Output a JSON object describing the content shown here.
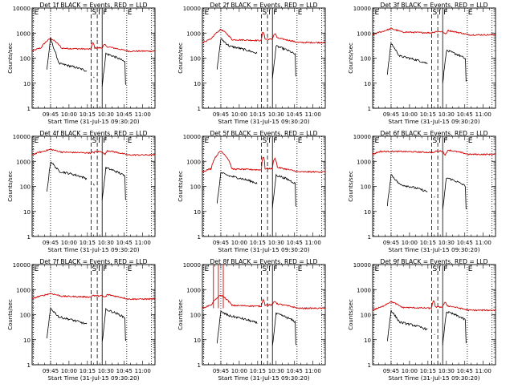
{
  "chart_data": {
    "type": "line",
    "layout": "3x3 grid",
    "xlabel": "Start Time (31-Jul-15 09:30:20)",
    "ylabel": "Counts/sec",
    "yscale": "log",
    "ylim": [
      1,
      10000
    ],
    "ytick_labels": [
      "1",
      "10",
      "100",
      "1000",
      "10000"
    ],
    "xlim_min": [
      0,
      100
    ],
    "xtick_labels": [
      "09:45",
      "10:00",
      "10:15",
      "10:30",
      "10:45",
      "11:00"
    ],
    "xticks_min": [
      15,
      30,
      45,
      60,
      75,
      90
    ],
    "series_colors": {
      "events": "#000000",
      "lld": "#d40000"
    },
    "markers": [
      {
        "label": "E",
        "t": 1,
        "style": "dotted"
      },
      {
        "label": "",
        "t": 15,
        "style": "dotted"
      },
      {
        "label": "S",
        "t": 48,
        "style": "dashed"
      },
      {
        "label": "I",
        "t": 53,
        "style": "dashed"
      },
      {
        "label": "F",
        "t": 57,
        "style": "solid"
      },
      {
        "label": "E",
        "t": 77,
        "style": "dotted"
      },
      {
        "label": "",
        "t": 97,
        "style": "dotted"
      }
    ],
    "panels": [
      {
        "title": "Det 1f BLACK = Events, RED = LLD",
        "lld_base": 190,
        "lld_peak": 620,
        "lld_bump": 400,
        "ev_peak": 600,
        "ev_mid": 30,
        "ev_after": 150,
        "spikes": []
      },
      {
        "title": "Det 2f BLACK = Events, RED = LLD",
        "lld_base": 420,
        "lld_peak": 1400,
        "lld_bump": 1100,
        "ev_peak": 600,
        "ev_mid": 150,
        "ev_after": 300,
        "spikes": []
      },
      {
        "title": "Det 3f BLACK = Events, RED = LLD",
        "lld_base": 850,
        "lld_peak": 1500,
        "lld_bump": 1100,
        "ev_peak": 400,
        "ev_mid": 60,
        "ev_after": 200,
        "spikes": []
      },
      {
        "title": "Det 4f BLACK = Events, RED = LLD",
        "lld_base": 1800,
        "lld_peak": 3000,
        "lld_bump": 2300,
        "ev_peak": 1000,
        "ev_mid": 200,
        "ev_after": 550,
        "spikes": []
      },
      {
        "title": "Det 5f BLACK = Events, RED = LLD",
        "lld_base": 380,
        "lld_peak": 2600,
        "lld_bump": 1500,
        "ev_peak": 350,
        "ev_mid": 130,
        "ev_after": 280,
        "spikes": []
      },
      {
        "title": "Det 6f BLACK = Events, RED = LLD",
        "lld_base": 1900,
        "lld_peak": 2500,
        "lld_bump": 2200,
        "ev_peak": 300,
        "ev_mid": 60,
        "ev_after": 220,
        "spikes": []
      },
      {
        "title": "Det 7f BLACK = Events, RED = LLD",
        "lld_base": 420,
        "lld_peak": 700,
        "lld_bump": 600,
        "ev_peak": 180,
        "ev_mid": 40,
        "ev_after": 160,
        "spikes": []
      },
      {
        "title": "Det 8f BLACK = Events, RED = LLD",
        "lld_base": 180,
        "lld_peak": 600,
        "lld_bump": 400,
        "ev_peak": 130,
        "ev_mid": 45,
        "ev_after": 110,
        "spikes": [
          9,
          13,
          17
        ]
      },
      {
        "title": "Det 9f BLACK = Events, RED = LLD",
        "lld_base": 150,
        "lld_peak": 330,
        "lld_bump": 350,
        "ev_peak": 150,
        "ev_mid": 25,
        "ev_after": 130,
        "spikes": []
      }
    ]
  }
}
